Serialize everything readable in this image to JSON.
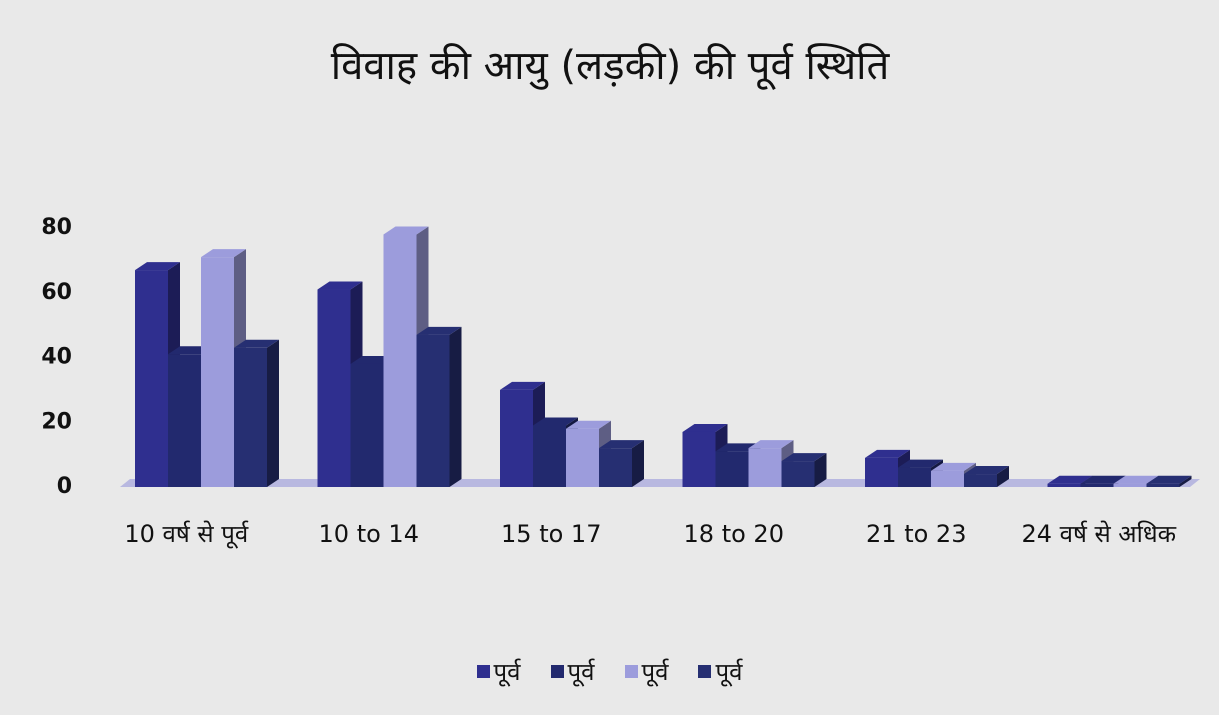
{
  "chart_data": {
    "type": "bar3d",
    "title": "विवाह की आयु (लड़की)  की पूर्व स्थिति",
    "categories": [
      "10 वर्ष से पूर्व",
      "10 to 14",
      "15 to 17",
      "18  to 20",
      "21 to 23",
      "24 वर्ष से अधिक"
    ],
    "series": [
      {
        "name": "पूर्व",
        "color": "#2f2f8f",
        "values": [
          67,
          61,
          30,
          17,
          9,
          1
        ]
      },
      {
        "name": "पूर्व",
        "color": "#22296e",
        "values": [
          41,
          38,
          19,
          11,
          6,
          1
        ]
      },
      {
        "name": "पूर्व",
        "color": "#9c9cdc",
        "values": [
          71,
          78,
          18,
          12,
          5,
          1
        ]
      },
      {
        "name": "पूर्व",
        "color": "#262f72",
        "values": [
          43,
          47,
          12,
          8,
          4,
          1
        ]
      }
    ],
    "ylim": [
      0,
      80
    ],
    "yticks": [
      0,
      20,
      40,
      60,
      80
    ],
    "grid": false,
    "legend": "bottom"
  }
}
